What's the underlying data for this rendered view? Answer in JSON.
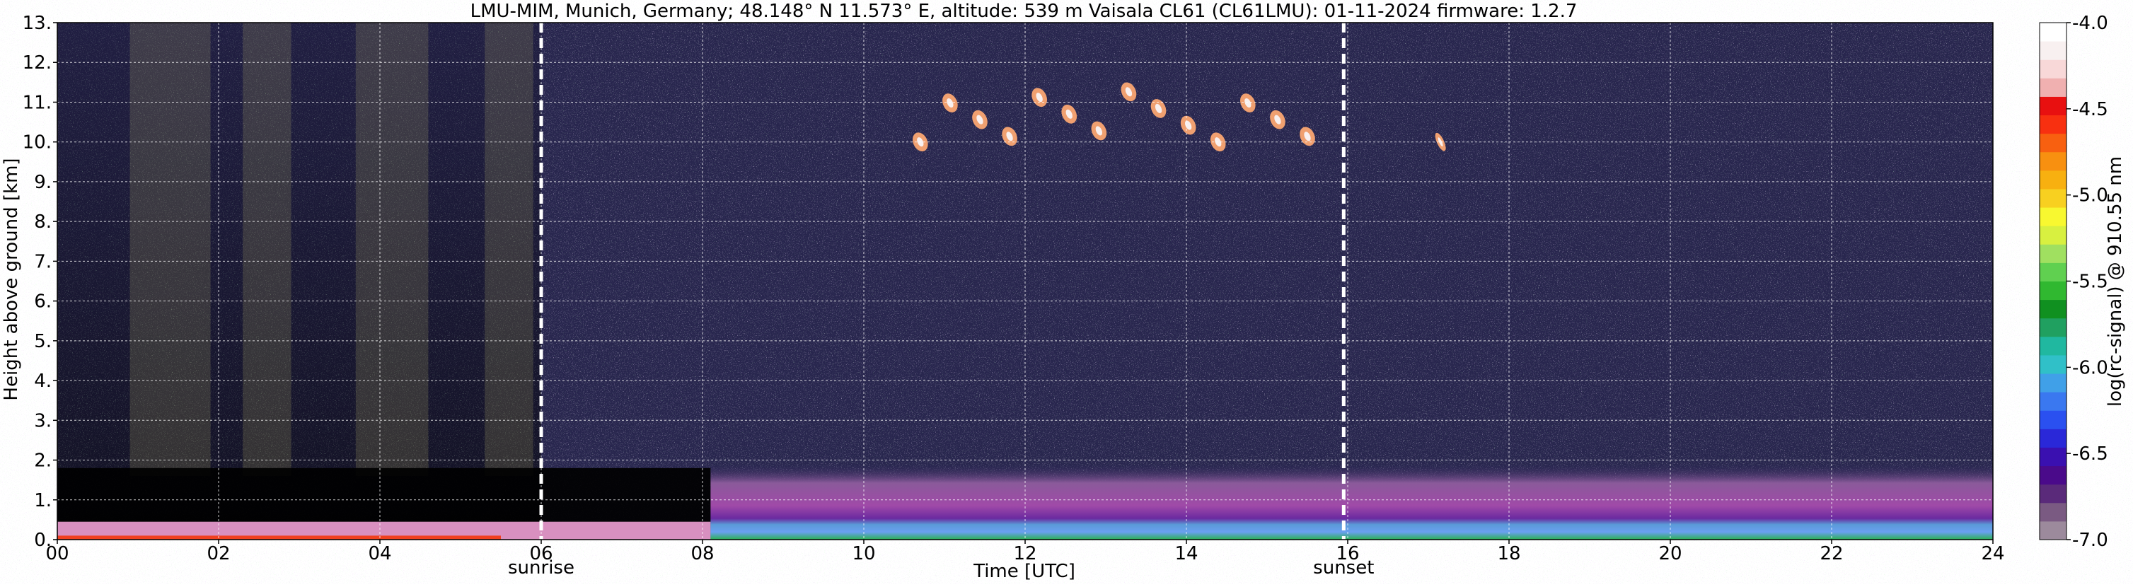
{
  "chart_data": {
    "type": "heatmap",
    "title": "LMU-MIM, Munich, Germany; 48.148° N 11.573° E, altitude: 539 m    Vaisala CL61 (CL61LMU): 01-11-2024    firmware: 1.2.7",
    "xlabel": "Time [UTC]",
    "ylabel": "Height above ground [km]",
    "xlim": [
      0,
      24
    ],
    "ylim": [
      0,
      13
    ],
    "x_ticks": [
      "00",
      "02",
      "04",
      "06",
      "08",
      "10",
      "12",
      "14",
      "16",
      "18",
      "20",
      "22",
      "24"
    ],
    "y_ticks": [
      "0.",
      "1.",
      "2.",
      "3.",
      "4.",
      "5.",
      "6.",
      "7.",
      "8.",
      "9.",
      "10.",
      "11.",
      "12.",
      "13."
    ],
    "grid": true,
    "vertical_markers": [
      {
        "label": "sunrise",
        "x": 6.0
      },
      {
        "label": "sunset",
        "x": 15.95
      }
    ],
    "colorbar": {
      "label": "log(rc-signal) @ 910.55 nm",
      "range": [
        -7.0,
        -4.0
      ],
      "ticks": [
        "-4.0",
        "-4.5",
        "-5.0",
        "-5.5",
        "-6.0",
        "-6.5",
        "-7.0"
      ],
      "colors": [
        "#9c8a9c",
        "#7a5a82",
        "#5a2a7a",
        "#4a0a8a",
        "#3a10b0",
        "#2a28d8",
        "#2a50f0",
        "#3a78f0",
        "#40a0e8",
        "#30c0c8",
        "#20b8a0",
        "#20a060",
        "#109020",
        "#30b830",
        "#60d050",
        "#a0e060",
        "#d8f040",
        "#f8f830",
        "#f8d020",
        "#f8b010",
        "#f89010",
        "#f86010",
        "#f83010",
        "#e81010",
        "#f0b0b0",
        "#f8d8d8",
        "#f8f0f0",
        "#ffffff"
      ]
    },
    "features": [
      {
        "name": "aerosol boundary layer",
        "x_range": [
          8.1,
          24
        ],
        "height_km": [
          0,
          1.9
        ],
        "log_signal_approx": -6.0
      },
      {
        "name": "cirrus cloud",
        "x_range": [
          10.7,
          15.5
        ],
        "height_km": [
          10.0,
          11.4
        ],
        "log_signal_approx": -4.8
      },
      {
        "name": "cirrus cloud",
        "x_range": [
          17.1,
          17.2
        ],
        "height_km": [
          10.0,
          10.4
        ],
        "log_signal_approx": -4.8
      }
    ]
  }
}
